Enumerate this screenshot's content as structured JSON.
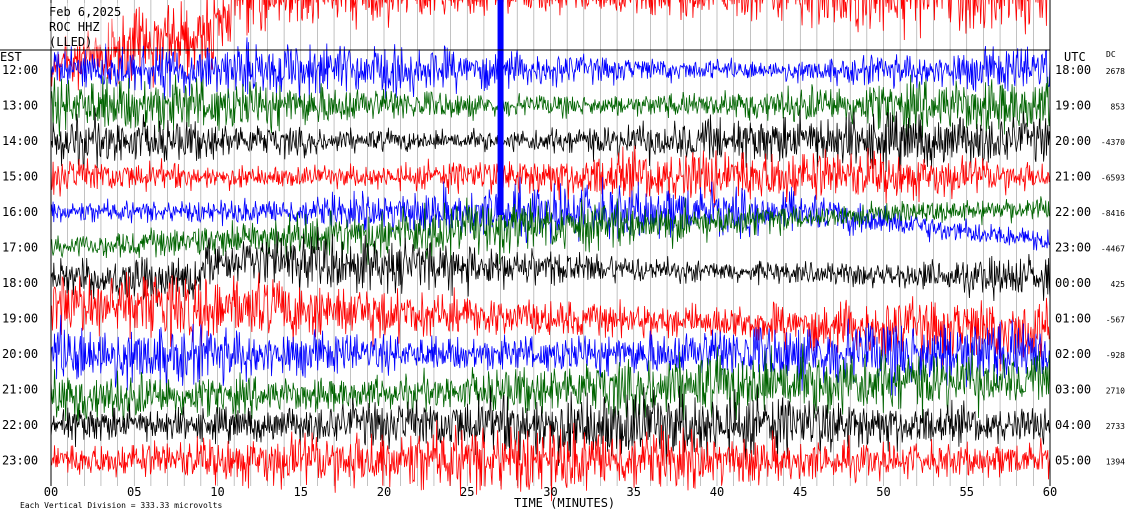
{
  "header": {
    "date": "Feb 6,2025",
    "station": "ROC HHZ",
    "network": "(LLED)"
  },
  "axis": {
    "left_title": "EST",
    "right_title": "UTC",
    "dc_title": "DC",
    "xlabel": "TIME (MINUTES)",
    "footer": "Each Vertical Division =  333.33 microvolts"
  },
  "chart_data": {
    "type": "line",
    "title": "",
    "xlabel": "TIME (MINUTES)",
    "xlim": [
      0,
      60
    ],
    "xticks": [
      "00",
      "05",
      "10",
      "15",
      "20",
      "25",
      "30",
      "35",
      "40",
      "45",
      "50",
      "55",
      "60"
    ],
    "rows": [
      {
        "est": "12:00",
        "utc": "18:00",
        "dc": "2678"
      },
      {
        "est": "13:00",
        "utc": "19:00",
        "dc": "853"
      },
      {
        "est": "14:00",
        "utc": "20:00",
        "dc": "-4370"
      },
      {
        "est": "15:00",
        "utc": "21:00",
        "dc": "-6593"
      },
      {
        "est": "16:00",
        "utc": "22:00",
        "dc": "-8416"
      },
      {
        "est": "17:00",
        "utc": "23:00",
        "dc": "-4467"
      },
      {
        "est": "18:00",
        "utc": "00:00",
        "dc": "425"
      },
      {
        "est": "19:00",
        "utc": "01:00",
        "dc": "-567"
      },
      {
        "est": "20:00",
        "utc": "02:00",
        "dc": "-928"
      },
      {
        "est": "21:00",
        "utc": "03:00",
        "dc": "2710"
      },
      {
        "est": "22:00",
        "utc": "04:00",
        "dc": "2733"
      },
      {
        "est": "23:00",
        "utc": "05:00",
        "dc": "1394"
      }
    ],
    "trace_colors": [
      "#0000ff",
      "#006400",
      "#000000",
      "#ff0000"
    ]
  }
}
